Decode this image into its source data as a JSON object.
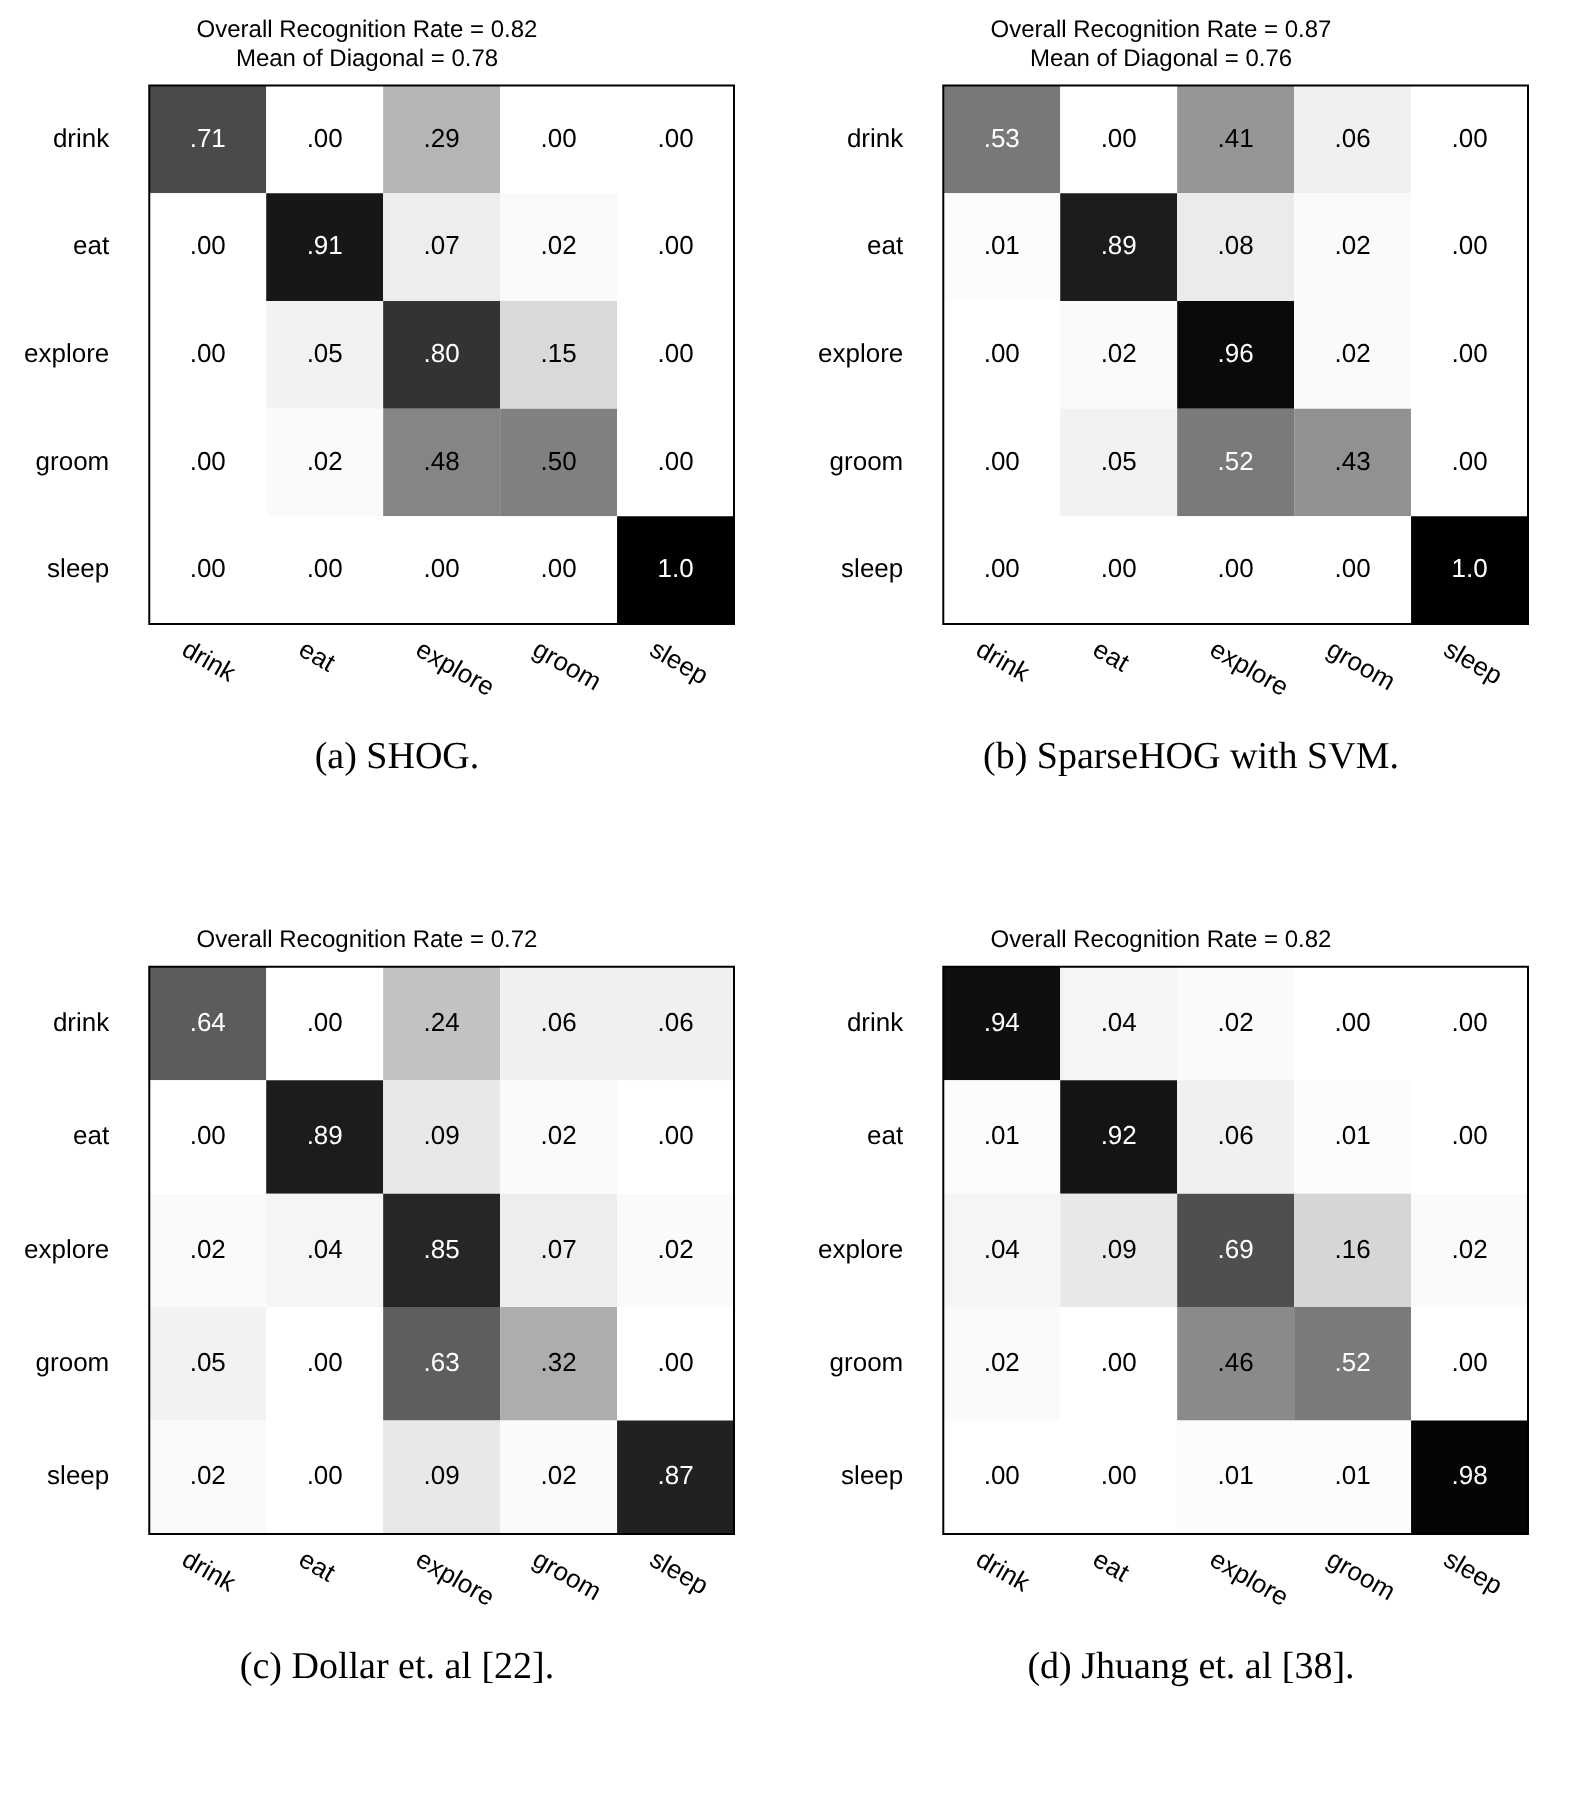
{
  "chart_data": [
    {
      "type": "heatmap",
      "title": "Overall Recognition Rate = 0.82",
      "subtitle": "Mean of Diagonal = 0.78",
      "categories": [
        "drink",
        "eat",
        "explore",
        "groom",
        "sleep"
      ],
      "y_categories": [
        "drink",
        "eat",
        "explore",
        "groom",
        "sleep"
      ],
      "cells": [
        [
          0.71,
          0,
          0.29,
          0,
          0
        ],
        [
          0,
          0.91,
          0.07,
          0.02,
          0
        ],
        [
          0,
          0.05,
          0.8,
          0.15,
          0
        ],
        [
          0,
          0.02,
          0.48,
          0.5,
          0
        ],
        [
          0,
          0,
          0,
          0,
          1.0
        ]
      ],
      "cell_labels": [
        [
          ".71",
          ".00",
          ".29",
          ".00",
          ".00"
        ],
        [
          ".00",
          ".91",
          ".07",
          ".02",
          ".00"
        ],
        [
          ".00",
          ".05",
          ".80",
          ".15",
          ".00"
        ],
        [
          ".00",
          ".02",
          ".48",
          ".50",
          ".00"
        ],
        [
          ".00",
          ".00",
          ".00",
          ".00",
          "1.0"
        ]
      ],
      "annotations": [
        "(a) SHOG."
      ]
    },
    {
      "type": "heatmap",
      "title": "Overall Recognition Rate = 0.87",
      "subtitle": "Mean of Diagonal = 0.76",
      "categories": [
        "drink",
        "eat",
        "explore",
        "groom",
        "sleep"
      ],
      "y_categories": [
        "drink",
        "eat",
        "explore",
        "groom",
        "sleep"
      ],
      "cells": [
        [
          0.53,
          0,
          0.41,
          0.06,
          0
        ],
        [
          0.01,
          0.89,
          0.08,
          0.02,
          0
        ],
        [
          0,
          0.02,
          0.96,
          0.02,
          0
        ],
        [
          0,
          0.05,
          0.52,
          0.43,
          0
        ],
        [
          0,
          0,
          0,
          0,
          1.0
        ]
      ],
      "cell_labels": [
        [
          ".53",
          ".00",
          ".41",
          ".06",
          ".00"
        ],
        [
          ".01",
          ".89",
          ".08",
          ".02",
          ".00"
        ],
        [
          ".00",
          ".02",
          ".96",
          ".02",
          ".00"
        ],
        [
          ".00",
          ".05",
          ".52",
          ".43",
          ".00"
        ],
        [
          ".00",
          ".00",
          ".00",
          ".00",
          "1.0"
        ]
      ],
      "annotations": [
        "(b) SparseHOG with SVM."
      ]
    },
    {
      "type": "heatmap",
      "title": "Overall Recognition Rate = 0.72",
      "categories": [
        "drink",
        "eat",
        "explore",
        "groom",
        "sleep"
      ],
      "y_categories": [
        "drink",
        "eat",
        "explore",
        "groom",
        "sleep"
      ],
      "cells": [
        [
          0.64,
          0,
          0.24,
          0.06,
          0.06
        ],
        [
          0,
          0.89,
          0.09,
          0.02,
          0
        ],
        [
          0.02,
          0.04,
          0.85,
          0.07,
          0.02
        ],
        [
          0.05,
          0,
          0.63,
          0.32,
          0
        ],
        [
          0.02,
          0,
          0.09,
          0.02,
          0.87
        ]
      ],
      "cell_labels": [
        [
          ".64",
          ".00",
          ".24",
          ".06",
          ".06"
        ],
        [
          ".00",
          ".89",
          ".09",
          ".02",
          ".00"
        ],
        [
          ".02",
          ".04",
          ".85",
          ".07",
          ".02"
        ],
        [
          ".05",
          ".00",
          ".63",
          ".32",
          ".00"
        ],
        [
          ".02",
          ".00",
          ".09",
          ".02",
          ".87"
        ]
      ],
      "annotations": [
        "(c) Dollar et. al [22]."
      ]
    },
    {
      "type": "heatmap",
      "title": "Overall Recognition Rate = 0.82",
      "categories": [
        "drink",
        "eat",
        "explore",
        "groom",
        "sleep"
      ],
      "y_categories": [
        "drink",
        "eat",
        "explore",
        "groom",
        "sleep"
      ],
      "cells": [
        [
          0.94,
          0.04,
          0.02,
          0,
          0
        ],
        [
          0.01,
          0.92,
          0.06,
          0.01,
          0
        ],
        [
          0.04,
          0.09,
          0.69,
          0.16,
          0.02
        ],
        [
          0.02,
          0,
          0.46,
          0.52,
          0
        ],
        [
          0,
          0,
          0.01,
          0.01,
          0.98
        ]
      ],
      "cell_labels": [
        [
          ".94",
          ".04",
          ".02",
          ".00",
          ".00"
        ],
        [
          ".01",
          ".92",
          ".06",
          ".01",
          ".00"
        ],
        [
          ".04",
          ".09",
          ".69",
          ".16",
          ".02"
        ],
        [
          ".02",
          ".00",
          ".46",
          ".52",
          ".00"
        ],
        [
          ".00",
          ".00",
          ".01",
          ".01",
          ".98"
        ]
      ],
      "annotations": [
        "(d) Jhuang et. al [38]."
      ]
    }
  ]
}
